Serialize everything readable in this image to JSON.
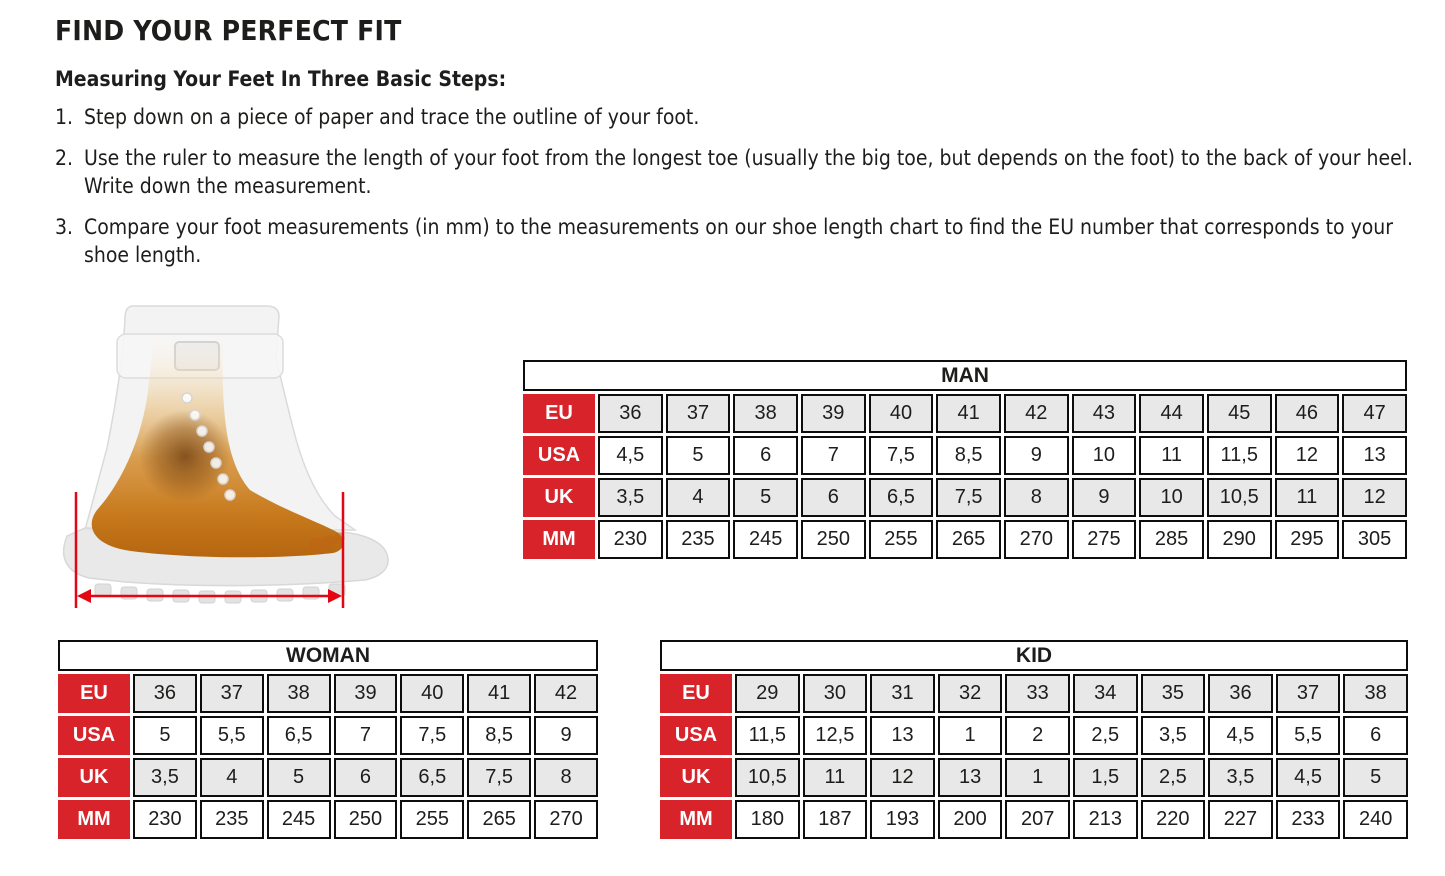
{
  "header": {
    "title": "FIND YOUR PERFECT FIT",
    "subtitle": "Measuring Your Feet In Three Basic Steps:",
    "steps": [
      {
        "num": "1.",
        "text": "Step down on a piece of paper and trace the outline of your foot."
      },
      {
        "num": "2.",
        "text": "Use the ruler to measure the length of your foot from the longest toe (usually the big toe, but depends on the foot) to the back of your heel. Write down the measurement."
      },
      {
        "num": "3.",
        "text": "Compare your foot measurements (in mm) to the measurements on our shoe length chart to find the EU number that corresponds to your shoe length."
      }
    ]
  },
  "figure": {
    "icon": "boot-foot-xray",
    "arrow_icon": "foot-length-measurement-arrow",
    "arrow_color": "#e30613"
  },
  "colors": {
    "label_red": "#d8232a",
    "stripe_gray": "#e8e8e8",
    "border_black": "#0d0d0d"
  },
  "tables": {
    "man": {
      "title": "MAN",
      "row_labels": [
        "EU",
        "USA",
        "UK",
        "MM"
      ],
      "rows": [
        [
          "36",
          "37",
          "38",
          "39",
          "40",
          "41",
          "42",
          "43",
          "44",
          "45",
          "46",
          "47"
        ],
        [
          "4,5",
          "5",
          "6",
          "7",
          "7,5",
          "8,5",
          "9",
          "10",
          "11",
          "11,5",
          "12",
          "13"
        ],
        [
          "3,5",
          "4",
          "5",
          "6",
          "6,5",
          "7,5",
          "8",
          "9",
          "10",
          "10,5",
          "11",
          "12"
        ],
        [
          "230",
          "235",
          "245",
          "250",
          "255",
          "265",
          "270",
          "275",
          "285",
          "290",
          "295",
          "305"
        ]
      ]
    },
    "woman": {
      "title": "WOMAN",
      "row_labels": [
        "EU",
        "USA",
        "UK",
        "MM"
      ],
      "rows": [
        [
          "36",
          "37",
          "38",
          "39",
          "40",
          "41",
          "42"
        ],
        [
          "5",
          "5,5",
          "6,5",
          "7",
          "7,5",
          "8,5",
          "9"
        ],
        [
          "3,5",
          "4",
          "5",
          "6",
          "6,5",
          "7,5",
          "8"
        ],
        [
          "230",
          "235",
          "245",
          "250",
          "255",
          "265",
          "270"
        ]
      ]
    },
    "kid": {
      "title": "KID",
      "row_labels": [
        "EU",
        "USA",
        "UK",
        "MM"
      ],
      "rows": [
        [
          "29",
          "30",
          "31",
          "32",
          "33",
          "34",
          "35",
          "36",
          "37",
          "38"
        ],
        [
          "11,5",
          "12,5",
          "13",
          "1",
          "2",
          "2,5",
          "3,5",
          "4,5",
          "5,5",
          "6"
        ],
        [
          "10,5",
          "11",
          "12",
          "13",
          "1",
          "1,5",
          "2,5",
          "3,5",
          "4,5",
          "5"
        ],
        [
          "180",
          "187",
          "193",
          "200",
          "207",
          "213",
          "220",
          "227",
          "233",
          "240"
        ]
      ]
    }
  }
}
